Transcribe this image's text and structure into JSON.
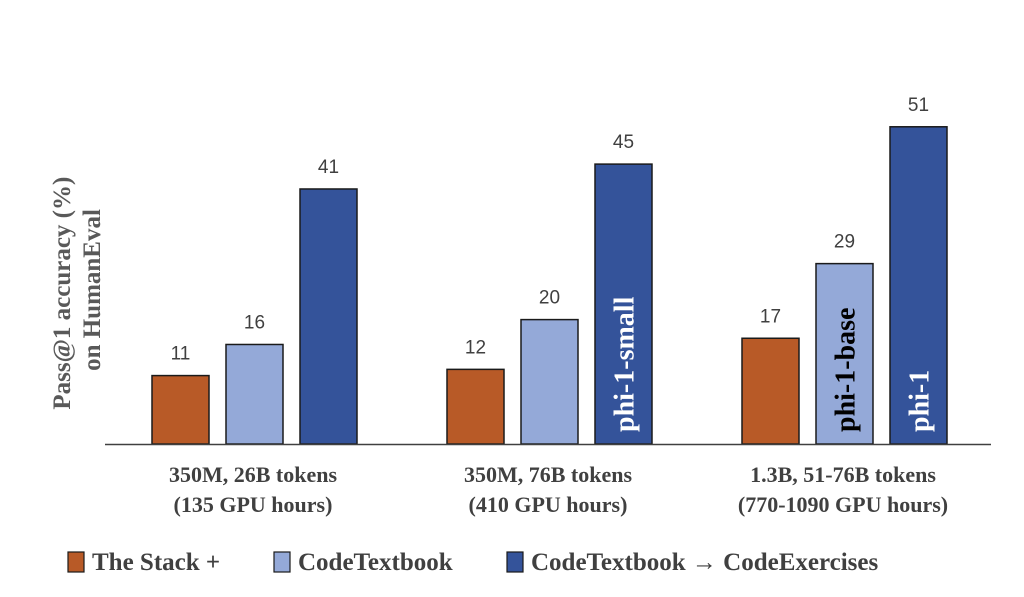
{
  "chart_data": {
    "type": "bar",
    "title": "",
    "xlabel": "",
    "ylabel_lines": [
      "Pass@1 accuracy (%)",
      "on HumanEval"
    ],
    "ylim": [
      0,
      60
    ],
    "grid": false,
    "legend_position": "bottom",
    "categories": [
      [
        "350M, 26B tokens",
        "(135 GPU hours)"
      ],
      [
        "350M, 76B tokens",
        "(410 GPU hours)"
      ],
      [
        "1.3B, 51-76B tokens",
        "(770-1090 GPU hours)"
      ]
    ],
    "series": [
      {
        "name": "The Stack +",
        "color": "#b85a27",
        "values": [
          11,
          12,
          17
        ],
        "inner_labels": [
          "",
          "",
          ""
        ],
        "inner_label_color": "#ffffff"
      },
      {
        "name": "CodeTextbook",
        "color": "#94a9d8",
        "values": [
          16,
          20,
          29
        ],
        "inner_labels": [
          "",
          "",
          "phi-1-base"
        ],
        "inner_label_color": "#000000"
      },
      {
        "name": "CodeTextbook → CodeExercises",
        "color": "#34539a",
        "values": [
          41,
          45,
          51
        ],
        "inner_labels": [
          "",
          "phi-1-small",
          "phi-1"
        ],
        "inner_label_color": "#ffffff"
      }
    ]
  }
}
